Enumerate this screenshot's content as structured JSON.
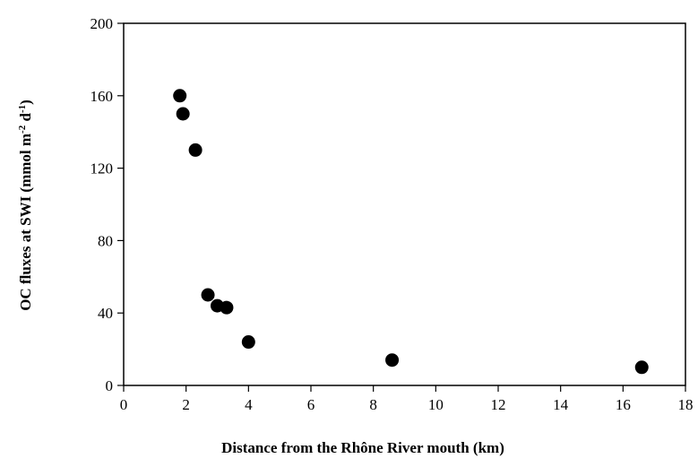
{
  "chart_data": {
    "type": "scatter",
    "title": "",
    "xlabel": "Distance from the Rhône River mouth (km)",
    "ylabel_main": "OC fluxes at SWI  (mmol m",
    "ylabel_sup1": "-2",
    "ylabel_mid": " d",
    "ylabel_sup2": "-1",
    "ylabel_end": ")",
    "xlim": [
      0,
      18
    ],
    "ylim": [
      0,
      200
    ],
    "x_ticks": [
      0,
      2,
      4,
      6,
      8,
      10,
      12,
      14,
      16,
      18
    ],
    "y_ticks": [
      0,
      40,
      80,
      120,
      160,
      200
    ],
    "grid": false,
    "legend": "none",
    "marker_color": "#000000",
    "series": [
      {
        "points": [
          {
            "x": 1.8,
            "y": 160
          },
          {
            "x": 1.9,
            "y": 150
          },
          {
            "x": 2.3,
            "y": 130
          },
          {
            "x": 2.7,
            "y": 50
          },
          {
            "x": 3.0,
            "y": 44
          },
          {
            "x": 3.3,
            "y": 43
          },
          {
            "x": 4.0,
            "y": 24
          },
          {
            "x": 8.6,
            "y": 14
          },
          {
            "x": 16.6,
            "y": 10
          }
        ]
      }
    ]
  }
}
